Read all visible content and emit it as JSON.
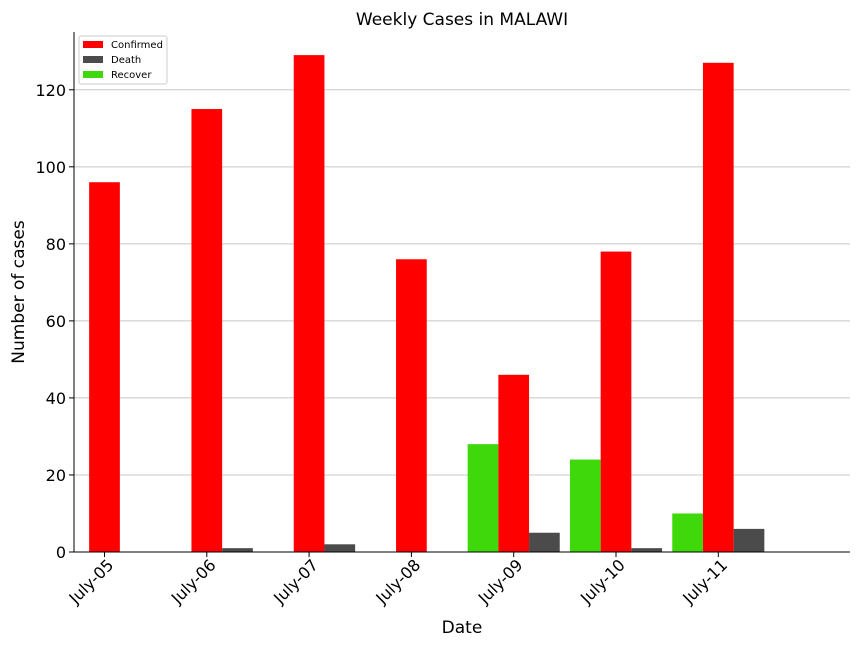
{
  "chart_data": {
    "type": "bar",
    "title": "Weekly Cases in MALAWI",
    "xlabel": "Date",
    "ylabel": "Number of cases",
    "categories": [
      "July-05",
      "July-06",
      "July-07",
      "July-08",
      "July-09",
      "July-10",
      "July-11"
    ],
    "ylim": [
      0,
      135
    ],
    "yticks": [
      0,
      20,
      40,
      60,
      80,
      100,
      120
    ],
    "grid": "horizontal",
    "legend_position": "top-left",
    "series": [
      {
        "name": "Recover",
        "color": "#3fd90b",
        "values": [
          0,
          0,
          0,
          0,
          28,
          24,
          10
        ]
      },
      {
        "name": "Confirmed",
        "color": "#ff0000",
        "values": [
          96,
          115,
          129,
          76,
          46,
          78,
          127
        ]
      },
      {
        "name": "Death",
        "color": "#4b4b4b",
        "values": [
          0,
          1,
          2,
          0,
          5,
          1,
          6
        ]
      }
    ],
    "legend": [
      {
        "label": "Confirmed",
        "color": "#ff0000"
      },
      {
        "label": "Death",
        "color": "#4b4b4b"
      },
      {
        "label": "Recover",
        "color": "#3fd90b"
      }
    ]
  }
}
